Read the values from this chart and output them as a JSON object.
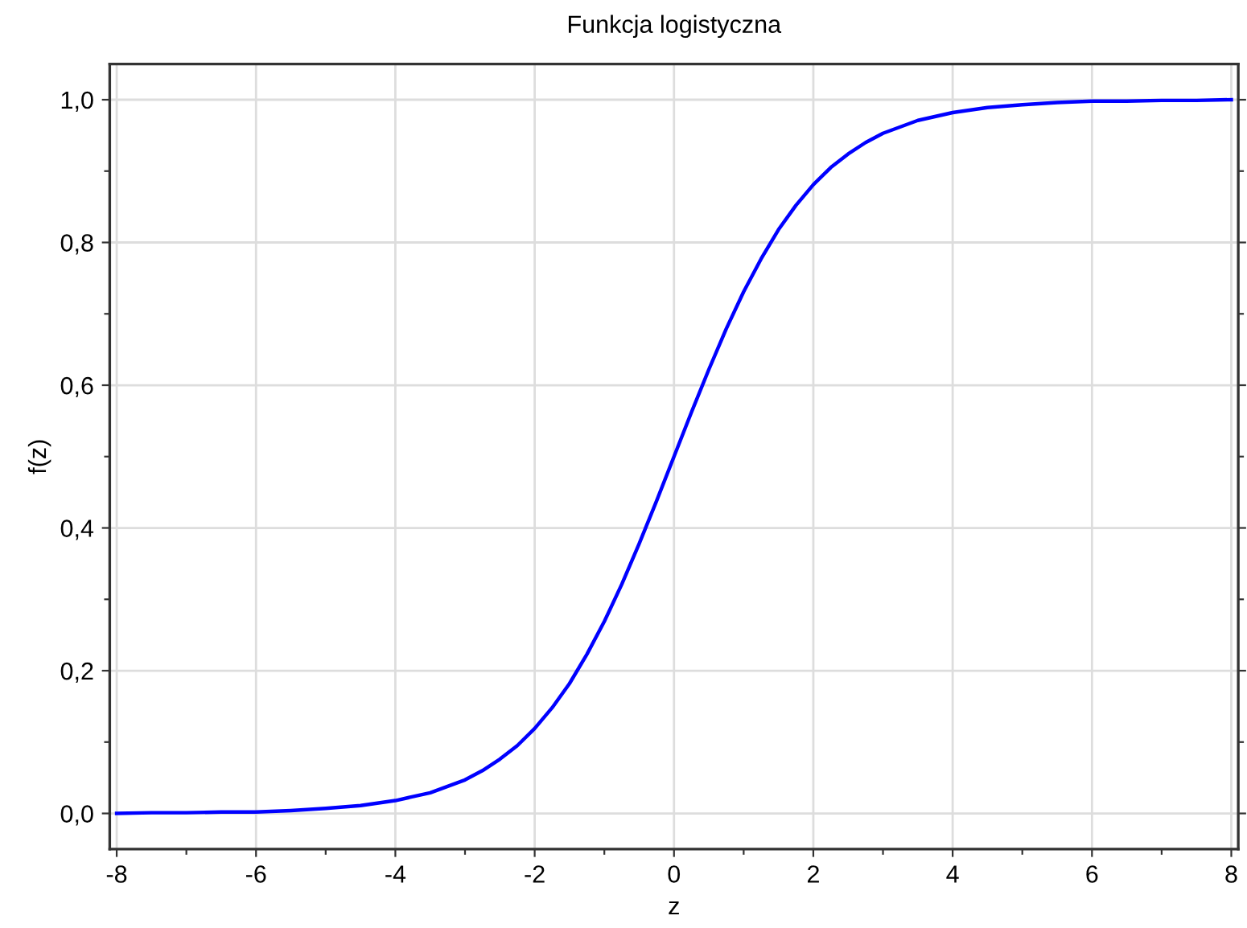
{
  "chart_data": {
    "type": "line",
    "title": "Funkcja logistyczna",
    "xlabel": "z",
    "ylabel": "f(z)",
    "x": [
      -8,
      -7.5,
      -7,
      -6.5,
      -6,
      -5.5,
      -5,
      -4.5,
      -4,
      -3.5,
      -3,
      -2.75,
      -2.5,
      -2.25,
      -2,
      -1.75,
      -1.5,
      -1.25,
      -1,
      -0.75,
      -0.5,
      -0.25,
      0,
      0.25,
      0.5,
      0.75,
      1,
      1.25,
      1.5,
      1.75,
      2,
      2.25,
      2.5,
      2.75,
      3,
      3.5,
      4,
      4.5,
      5,
      5.5,
      6,
      6.5,
      7,
      7.5,
      8
    ],
    "series": [
      {
        "color": "#0000ff",
        "values": [
          0.0,
          0.001,
          0.001,
          0.002,
          0.002,
          0.004,
          0.007,
          0.011,
          0.018,
          0.029,
          0.047,
          0.06,
          0.076,
          0.095,
          0.119,
          0.148,
          0.182,
          0.223,
          0.269,
          0.321,
          0.378,
          0.438,
          0.5,
          0.562,
          0.622,
          0.679,
          0.731,
          0.777,
          0.818,
          0.852,
          0.881,
          0.905,
          0.924,
          0.94,
          0.953,
          0.971,
          0.982,
          0.989,
          0.993,
          0.996,
          0.998,
          0.998,
          0.999,
          0.999,
          1.0
        ]
      }
    ],
    "xlim": [
      -8.1,
      8.1
    ],
    "ylim": [
      -0.05,
      1.05
    ],
    "xticks": [
      -8,
      {
        "value": -7,
        "label": null
      },
      -6,
      {
        "value": -5,
        "label": null
      },
      -4,
      {
        "value": -3,
        "label": null
      },
      -2,
      {
        "value": -1,
        "label": null
      },
      0,
      {
        "value": 1,
        "label": null
      },
      2,
      {
        "value": 3,
        "label": null
      },
      4,
      {
        "value": 5,
        "label": null
      },
      6,
      {
        "value": 7,
        "label": null
      },
      8
    ],
    "yticks": [
      {
        "value": 0,
        "label": "0,0"
      },
      {
        "value": 0.1,
        "label": null
      },
      {
        "value": 0.2,
        "label": "0,2"
      },
      {
        "value": 0.3,
        "label": null
      },
      {
        "value": 0.4,
        "label": "0,4"
      },
      {
        "value": 0.5,
        "label": null
      },
      {
        "value": 0.6,
        "label": "0,6"
      },
      {
        "value": 0.7,
        "label": null
      },
      {
        "value": 0.8,
        "label": "0,8"
      },
      {
        "value": 0.9,
        "label": null
      },
      {
        "value": 1,
        "label": "1,0"
      }
    ],
    "grid": true,
    "marker": "none",
    "line_style": "solid"
  }
}
